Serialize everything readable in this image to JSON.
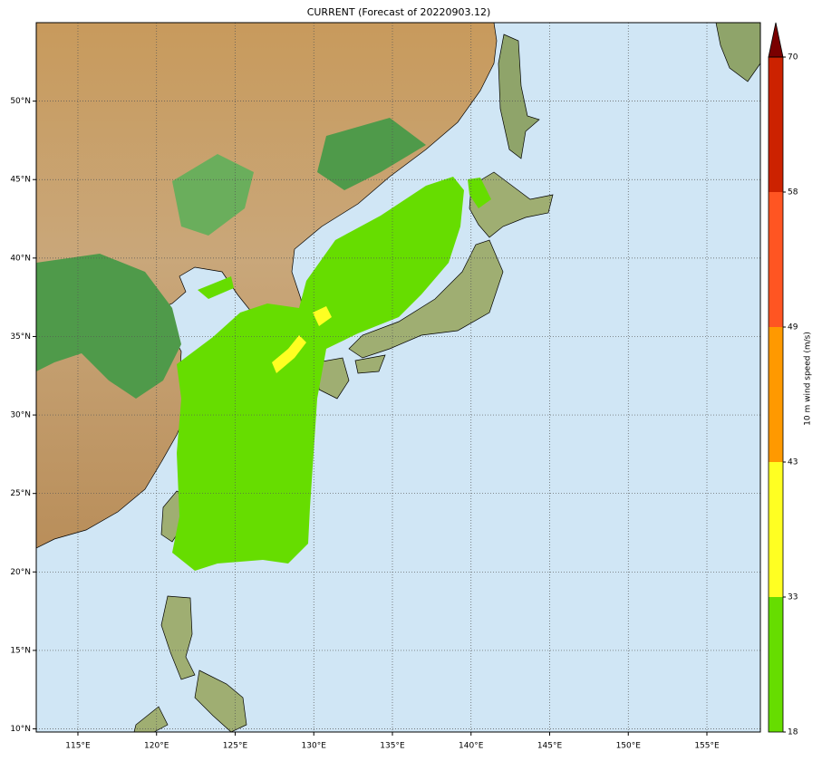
{
  "map": {
    "title": "CURRENT (Forecast of 20220903.12)",
    "lon_lim": [
      112.35,
      158.4
    ],
    "lat_lim": [
      9.8,
      55
    ],
    "lon_ticks": [
      {
        "value": 115,
        "label": "115°E"
      },
      {
        "value": 120,
        "label": "120°E"
      },
      {
        "value": 125,
        "label": "125°E"
      },
      {
        "value": 130,
        "label": "130°E"
      },
      {
        "value": 135,
        "label": "135°E"
      },
      {
        "value": 140,
        "label": "140°E"
      },
      {
        "value": 145,
        "label": "145°E"
      },
      {
        "value": 150,
        "label": "150°E"
      },
      {
        "value": 155,
        "label": "155°E"
      }
    ],
    "lat_ticks": [
      {
        "value": 10,
        "label": "10°N"
      },
      {
        "value": 15,
        "label": "15°N"
      },
      {
        "value": 20,
        "label": "20°N"
      },
      {
        "value": 25,
        "label": "25°N"
      },
      {
        "value": 30,
        "label": "30°N"
      },
      {
        "value": 35,
        "label": "35°N"
      },
      {
        "value": 40,
        "label": "40°N"
      },
      {
        "value": 45,
        "label": "45°N"
      },
      {
        "value": 50,
        "label": "50°N"
      }
    ],
    "colorbar": {
      "label": "10 m wind speed (m/s)",
      "ticks": [
        18,
        33,
        43,
        49,
        58,
        70
      ],
      "colors": [
        "#66dd00",
        "#ffff22",
        "#ff9900",
        "#ff5522",
        "#cc2200"
      ],
      "extend_color": "#7a0000"
    }
  }
}
